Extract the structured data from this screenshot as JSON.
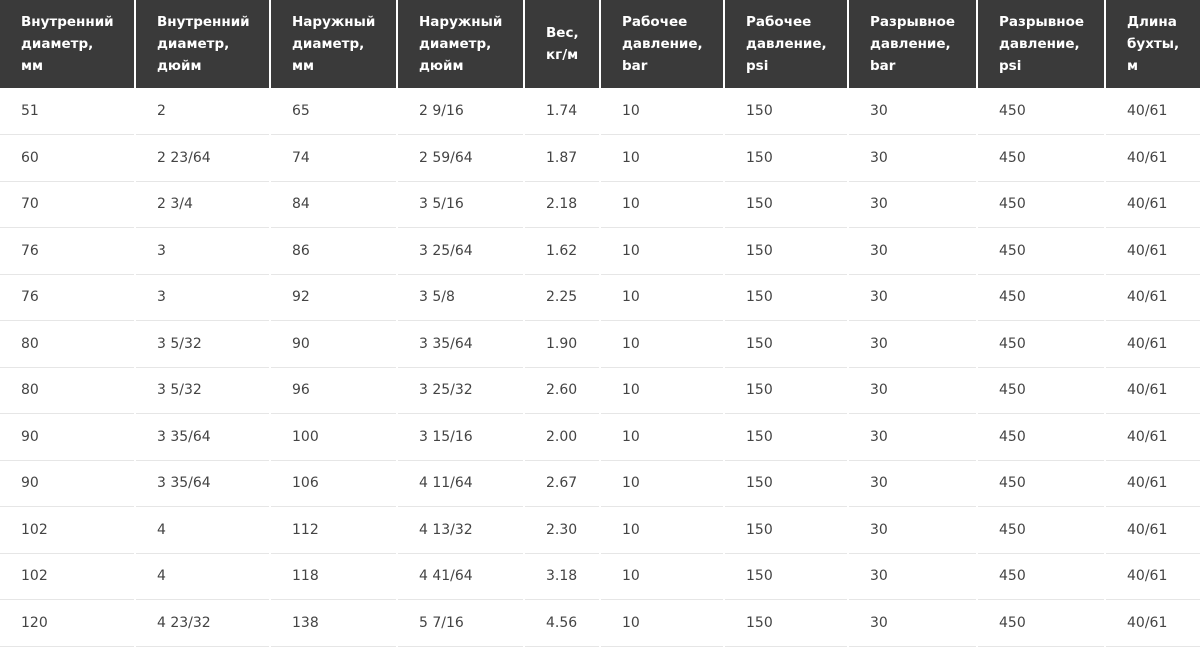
{
  "table": {
    "headers": [
      "Внутренний\nдиаметр,\nмм",
      "Внутренний\nдиаметр,\nдюйм",
      "Наружный\nдиаметр,\nмм",
      "Наружный\nдиаметр,\nдюйм",
      "Вес,\nкг/м",
      "Рабочее\nдавление,\nbar",
      "Рабочее\nдавление,\npsi",
      "Разрывное\nдавление,\nbar",
      "Разрывное\nдавление,\npsi",
      "Длина\nбухты,\nм"
    ],
    "rows": [
      [
        "51",
        "2",
        "65",
        "2 9/16",
        "1.74",
        "10",
        "150",
        "30",
        "450",
        "40/61"
      ],
      [
        "60",
        "2 23/64",
        "74",
        "2 59/64",
        "1.87",
        "10",
        "150",
        "30",
        "450",
        "40/61"
      ],
      [
        "70",
        "2 3/4",
        "84",
        "3 5/16",
        "2.18",
        "10",
        "150",
        "30",
        "450",
        "40/61"
      ],
      [
        "76",
        "3",
        "86",
        "3 25/64",
        "1.62",
        "10",
        "150",
        "30",
        "450",
        "40/61"
      ],
      [
        "76",
        "3",
        "92",
        "3 5/8",
        "2.25",
        "10",
        "150",
        "30",
        "450",
        "40/61"
      ],
      [
        "80",
        "3 5/32",
        "90",
        "3 35/64",
        "1.90",
        "10",
        "150",
        "30",
        "450",
        "40/61"
      ],
      [
        "80",
        "3 5/32",
        "96",
        "3 25/32",
        "2.60",
        "10",
        "150",
        "30",
        "450",
        "40/61"
      ],
      [
        "90",
        "3 35/64",
        "100",
        "3 15/16",
        "2.00",
        "10",
        "150",
        "30",
        "450",
        "40/61"
      ],
      [
        "90",
        "3 35/64",
        "106",
        "4 11/64",
        "2.67",
        "10",
        "150",
        "30",
        "450",
        "40/61"
      ],
      [
        "102",
        "4",
        "112",
        "4 13/32",
        "2.30",
        "10",
        "150",
        "30",
        "450",
        "40/61"
      ],
      [
        "102",
        "4",
        "118",
        "4 41/64",
        "3.18",
        "10",
        "150",
        "30",
        "450",
        "40/61"
      ],
      [
        "120",
        "4 23/32",
        "138",
        "5 7/16",
        "4.56",
        "10",
        "150",
        "30",
        "450",
        "40/61"
      ]
    ]
  }
}
